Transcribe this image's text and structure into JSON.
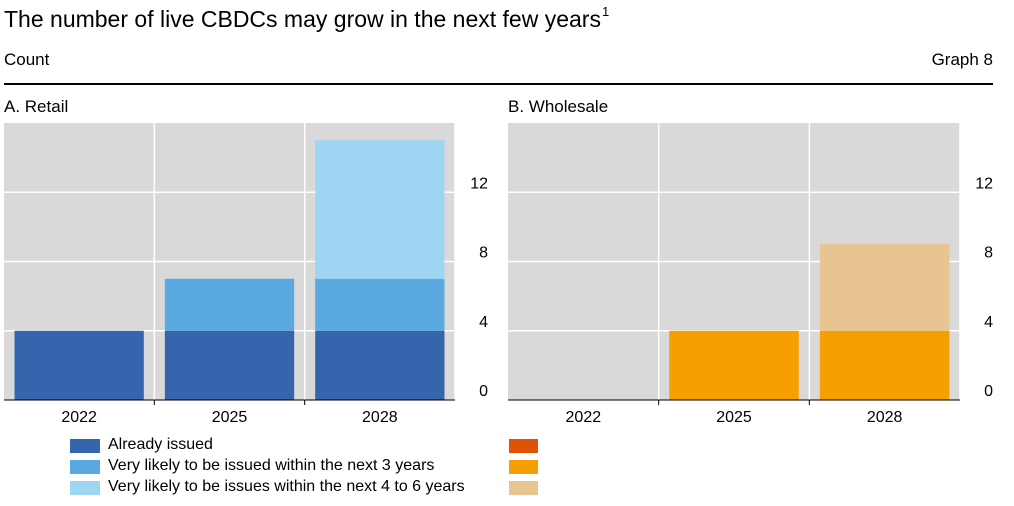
{
  "header": {
    "title": "The number of live CBDCs may grow in the next few years",
    "title_footnote": "1",
    "unit": "Count",
    "graph_number": "Graph 8"
  },
  "legend": {
    "items": [
      {
        "label": "Already issued",
        "retail_color": "#3465ad",
        "wholesale_color": "#e05206"
      },
      {
        "label": "Very likely to be issued within the next 3 years",
        "retail_color": "#5aa9e0",
        "wholesale_color": "#f5a000"
      },
      {
        "label": "Very likely to be issues within the next 4 to 6 years",
        "retail_color": "#9dd5f3",
        "wholesale_color": "#e8c590"
      }
    ]
  },
  "chart_data": [
    {
      "type": "bar",
      "stacked": true,
      "title": "A. Retail",
      "categories": [
        "2022",
        "2025",
        "2028"
      ],
      "y_ticks": [
        0,
        4,
        8,
        12
      ],
      "ylim": [
        0,
        16
      ],
      "y_axis_side": "right",
      "grid": true,
      "series": [
        {
          "name": "Already issued",
          "color": "#3465ad",
          "values": [
            4,
            4,
            4
          ]
        },
        {
          "name": "Very likely to be issued within the next 3 years",
          "color": "#5aa9e0",
          "values": [
            0,
            3,
            3
          ]
        },
        {
          "name": "Very likely to be issues within the next 4 to 6 years",
          "color": "#9dd5f3",
          "values": [
            0,
            0,
            8
          ]
        }
      ]
    },
    {
      "type": "bar",
      "stacked": true,
      "title": "B. Wholesale",
      "categories": [
        "2022",
        "2025",
        "2028"
      ],
      "y_ticks": [
        0,
        4,
        8,
        12
      ],
      "ylim": [
        0,
        16
      ],
      "y_axis_side": "right",
      "grid": true,
      "series": [
        {
          "name": "Already issued",
          "color": "#e05206",
          "values": [
            0,
            0,
            0
          ]
        },
        {
          "name": "Very likely to be issued within the next 3 years",
          "color": "#f5a000",
          "values": [
            0,
            4,
            4
          ]
        },
        {
          "name": "Very likely to be issues within the next 4 to 6 years",
          "color": "#e8c590",
          "values": [
            0,
            0,
            5
          ]
        }
      ]
    }
  ]
}
